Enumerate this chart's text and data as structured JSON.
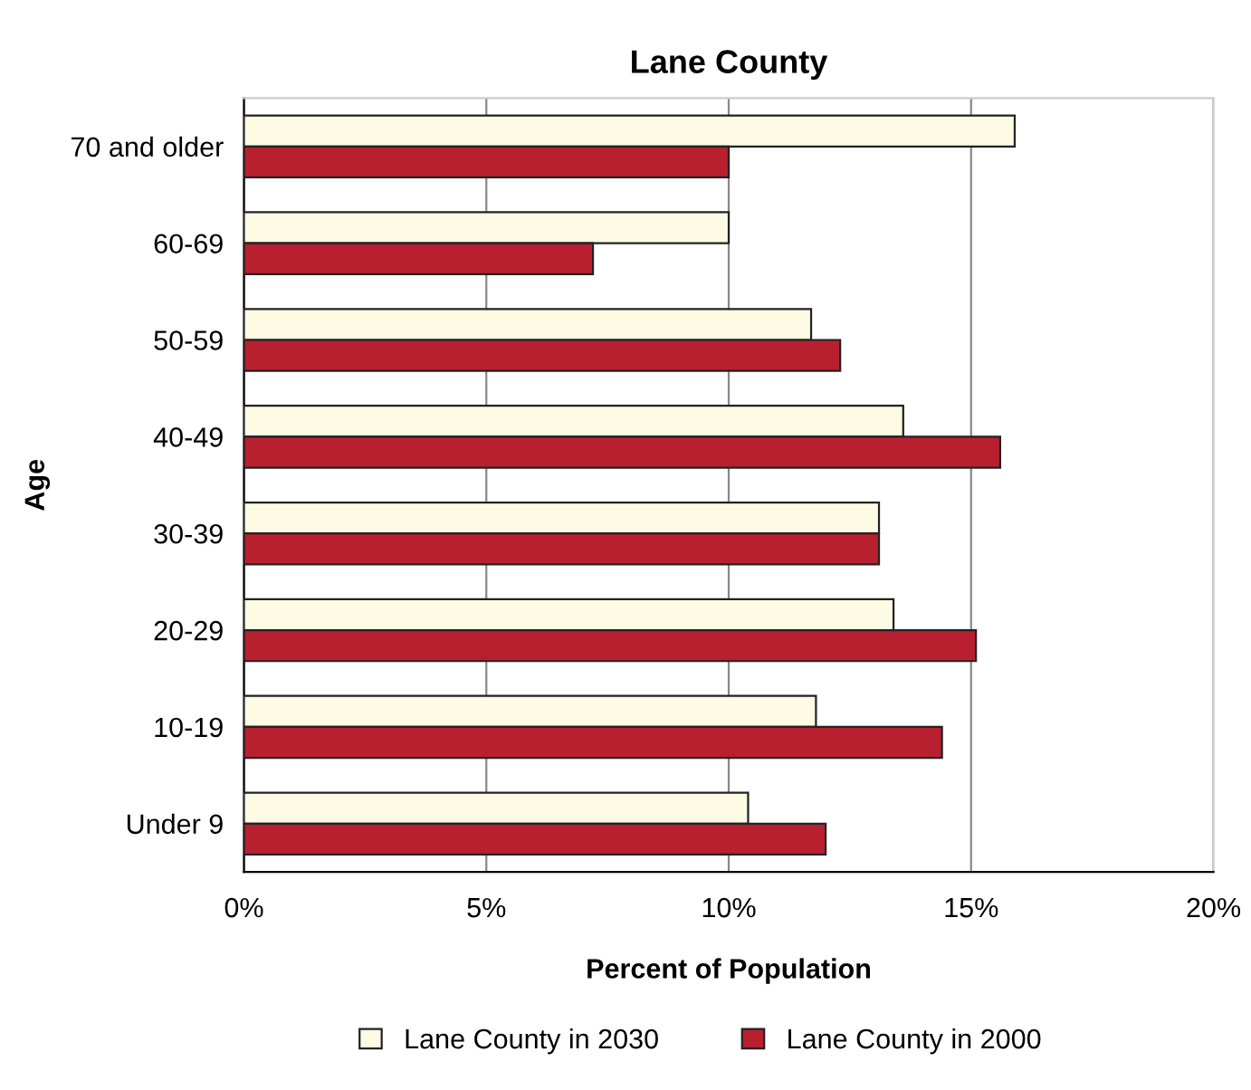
{
  "chart_data": {
    "type": "bar",
    "orientation": "horizontal",
    "title": "Lane County",
    "xlabel": "Percent of Population",
    "ylabel": "Age",
    "categories": [
      "70 and older",
      "60-69",
      "50-59",
      "40-49",
      "30-39",
      "20-29",
      "10-19",
      "Under 9"
    ],
    "series": [
      {
        "name": "Lane County in 2030",
        "color": "#fdfbe3",
        "values": [
          15.9,
          10.0,
          11.7,
          13.6,
          13.1,
          13.4,
          11.8,
          10.4
        ]
      },
      {
        "name": "Lane County in 2000",
        "color": "#b82030",
        "values": [
          10.0,
          7.2,
          12.3,
          15.6,
          13.1,
          15.1,
          14.4,
          12.0
        ]
      }
    ],
    "xlim": [
      0,
      20
    ],
    "xticks": [
      {
        "value": 0,
        "label": "0%"
      },
      {
        "value": 5,
        "label": "5%"
      },
      {
        "value": 10,
        "label": "10%"
      },
      {
        "value": 15,
        "label": "15%"
      },
      {
        "value": 20,
        "label": "20%"
      }
    ],
    "grid": "x",
    "legend": "bottom"
  }
}
